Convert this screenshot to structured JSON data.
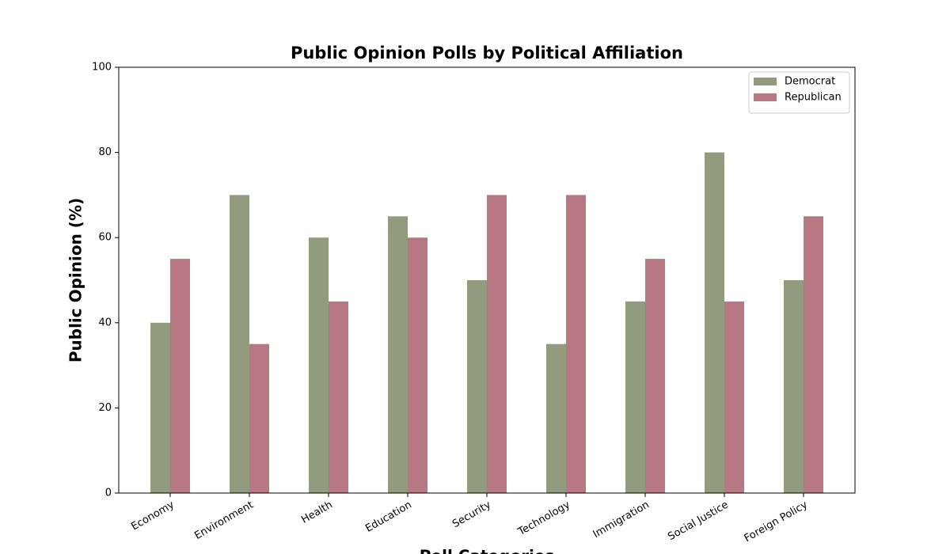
{
  "chart_data": {
    "type": "bar",
    "title": "Public Opinion Polls by Political Affiliation",
    "x_label": "Poll Categories",
    "y_label": "Public Opinion (%)",
    "categories": [
      "Economy",
      "Environment",
      "Health",
      "Education",
      "Security",
      "Technology",
      "Immigration",
      "Social Justice",
      "Foreign Policy"
    ],
    "series": [
      {
        "name": "Democrat",
        "color": "#939b7e",
        "values": [
          40,
          70,
          60,
          65,
          50,
          35,
          45,
          80,
          50
        ]
      },
      {
        "name": "Republican",
        "color": "#b87883",
        "values": [
          55,
          35,
          45,
          60,
          70,
          70,
          55,
          45,
          65
        ]
      }
    ],
    "ylim": [
      0,
      100
    ],
    "yticks": [
      0,
      20,
      40,
      60,
      80,
      100
    ],
    "grid": false,
    "legend": "upper right"
  }
}
